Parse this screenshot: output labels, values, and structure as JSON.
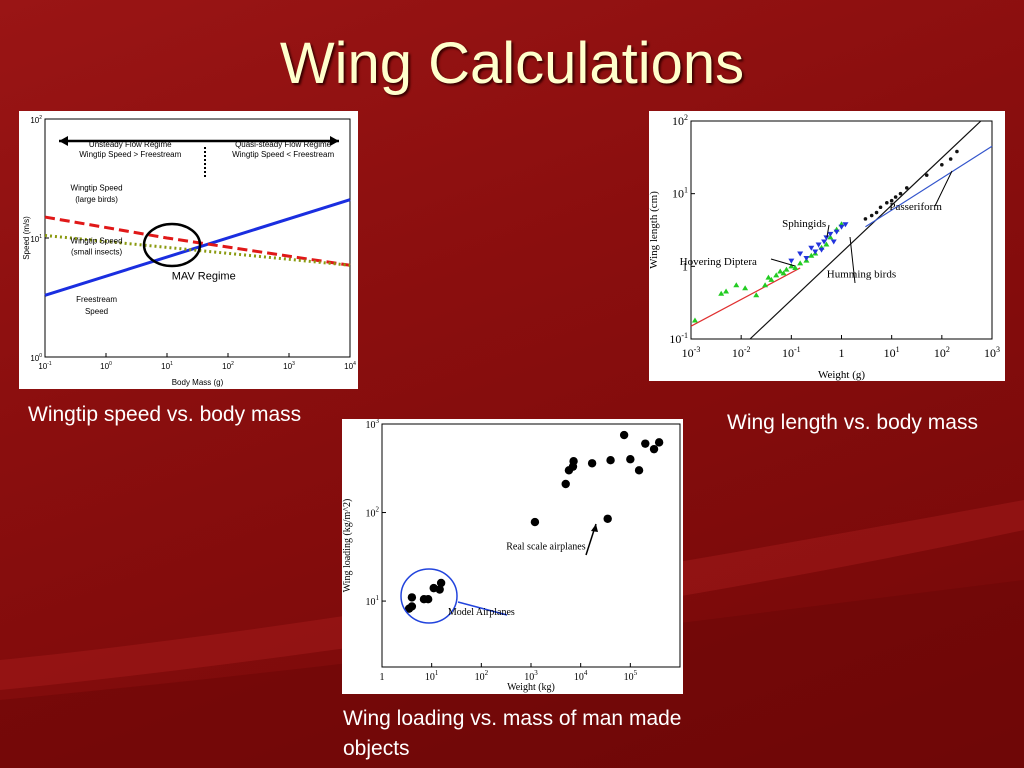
{
  "slide": {
    "title": "Wing Calculations",
    "captions": [
      "Wingtip speed vs. body mass",
      "Wing length vs. body mass",
      "Wing loading vs. mass of man made objects"
    ],
    "colors": {
      "background": "#8a0e0e",
      "title": "#ffffcc",
      "caption": "#ffffff"
    }
  },
  "chart_data": [
    {
      "type": "line",
      "xlabel": "Body Mass (g)",
      "ylabel": "Speed (m/s)",
      "x_scale": "log",
      "y_scale": "log",
      "xlim": [
        0.1,
        10000
      ],
      "ylim": [
        1,
        100
      ],
      "x_ticks": [
        "10-1",
        "100",
        "101",
        "102",
        "103",
        "104"
      ],
      "y_ticks": [
        "100",
        "101",
        "102"
      ],
      "series": [
        {
          "name": "",
          "style": "solid",
          "color": "#1a2ee0",
          "x": [
            0.1,
            10000
          ],
          "y": [
            3.3,
            21
          ]
        },
        {
          "name": "",
          "style": "dashed",
          "color": "#e01818",
          "x": [
            0.1,
            10,
            10000
          ],
          "y": [
            15,
            10,
            5.9
          ]
        },
        {
          "name": "",
          "style": "dotted",
          "color": "#8a9a10",
          "x": [
            0.1,
            10000
          ],
          "y": [
            10.5,
            5.9
          ]
        }
      ],
      "annotations": [
        {
          "text": "Unsteady Flow Regime",
          "x": 2.5,
          "y": 58
        },
        {
          "text": "Wingtip Speed > Freestream",
          "x": 2.5,
          "y": 48
        },
        {
          "text": "Quasi-steady Flow Regime",
          "x": 800,
          "y": 58
        },
        {
          "text": "Wingtip Speed < Freestream",
          "x": 800,
          "y": 48
        },
        {
          "text": "Wingtip Speed",
          "x": 0.7,
          "y": 25
        },
        {
          "text": "(large birds)",
          "x": 0.7,
          "y": 20
        },
        {
          "text": "Wingtip Speed",
          "x": 0.7,
          "y": 9
        },
        {
          "text": "(small insects)",
          "x": 0.7,
          "y": 7.3
        },
        {
          "text": "MAV Regime",
          "x": 40,
          "y": 4.5
        },
        {
          "text": "Freestream",
          "x": 0.7,
          "y": 2.9
        },
        {
          "text": "Speed",
          "x": 0.7,
          "y": 2.3
        }
      ]
    },
    {
      "type": "scatter",
      "xlabel": "Weight (g)",
      "ylabel": "Wing length (cm)",
      "x_scale": "log",
      "y_scale": "log",
      "xlim": [
        0.001,
        1000
      ],
      "ylim": [
        0.1,
        100
      ],
      "x_ticks": [
        "10-3",
        "10-2",
        "10-1",
        "1",
        "101",
        "102",
        "103"
      ],
      "y_ticks": [
        "10-1",
        "1",
        "101",
        "102"
      ],
      "series": [
        {
          "name": "",
          "marker": "triangle",
          "color": "#22cc22",
          "x": [
            0.0012,
            0.004,
            0.005,
            0.008,
            0.012,
            0.02,
            0.03,
            0.035,
            0.04,
            0.05,
            0.06,
            0.07,
            0.08,
            0.1,
            0.12,
            0.15,
            0.2,
            0.25,
            0.3,
            0.4,
            0.5,
            0.6,
            0.8,
            1.0
          ],
          "y": [
            0.18,
            0.42,
            0.45,
            0.55,
            0.5,
            0.4,
            0.55,
            0.7,
            0.65,
            0.75,
            0.85,
            0.8,
            0.9,
            1.0,
            0.95,
            1.1,
            1.2,
            1.4,
            1.5,
            1.8,
            2.0,
            2.5,
            3.2,
            3.8
          ]
        },
        {
          "name": "",
          "marker": "triangle-down",
          "color": "#2233dd",
          "x": [
            0.1,
            0.15,
            0.2,
            0.25,
            0.3,
            0.35,
            0.4,
            0.45,
            0.5,
            0.6,
            0.7,
            0.8,
            1.0,
            1.2
          ],
          "y": [
            1.2,
            1.5,
            1.3,
            1.8,
            1.6,
            2.0,
            1.7,
            2.2,
            2.5,
            2.8,
            2.2,
            3.0,
            3.5,
            3.8
          ]
        },
        {
          "name": "",
          "marker": "dot",
          "color": "#111111",
          "x": [
            3,
            4,
            5,
            6,
            8,
            10,
            12,
            15,
            20,
            50,
            100,
            150,
            200
          ],
          "y": [
            4.5,
            5,
            5.5,
            6.5,
            7.5,
            8,
            9,
            10,
            12,
            18,
            25,
            30,
            38
          ]
        }
      ],
      "fit_lines": [
        {
          "color": "#e03030",
          "x": [
            0.001,
            0.15
          ],
          "y": [
            0.15,
            0.95
          ]
        },
        {
          "color": "#111111",
          "x": [
            0.015,
            600
          ],
          "y": [
            0.1,
            100
          ]
        },
        {
          "color": "#3355cc",
          "x": [
            3,
            1000
          ],
          "y": [
            3.5,
            45
          ]
        }
      ],
      "annotations": [
        {
          "text": "Sphingids",
          "x": 0.18,
          "y": 3.5
        },
        {
          "text": "Hovering Diptera",
          "x": 0.0035,
          "y": 1.05
        },
        {
          "text": "Humming birds",
          "x": 2.5,
          "y": 0.7
        },
        {
          "text": "Passeriform",
          "x": 30,
          "y": 6
        }
      ]
    },
    {
      "type": "scatter",
      "xlabel": "Weight (kg)",
      "ylabel": "Wing loading (kg/m^2)",
      "x_scale": "log",
      "y_scale": "log",
      "xlim": [
        1,
        1000000
      ],
      "ylim": [
        1.8,
        1000
      ],
      "x_ticks": [
        "1",
        "101",
        "102",
        "103",
        "104",
        "105"
      ],
      "y_ticks": [
        "101",
        "102",
        "103"
      ],
      "series": [
        {
          "name": "",
          "marker": "dot",
          "color": "#000000",
          "x": [
            3.5,
            4,
            4,
            7,
            8.5,
            11,
            14.5,
            15.5,
            1200,
            5000,
            5800,
            7000,
            7200,
            17000,
            35000,
            40000,
            75000,
            100000,
            150000,
            200000,
            300000,
            380000
          ],
          "y": [
            8.2,
            8.7,
            11,
            10.5,
            10.5,
            14,
            13.5,
            16,
            78,
            210,
            300,
            330,
            380,
            360,
            85,
            390,
            750,
            400,
            300,
            600,
            520,
            620
          ]
        }
      ],
      "annotations": [
        {
          "text": "Real scale airplanes",
          "x": 2000,
          "y": 38
        },
        {
          "text": "Model Airplanes",
          "x": 100,
          "y": 7
        }
      ]
    }
  ]
}
